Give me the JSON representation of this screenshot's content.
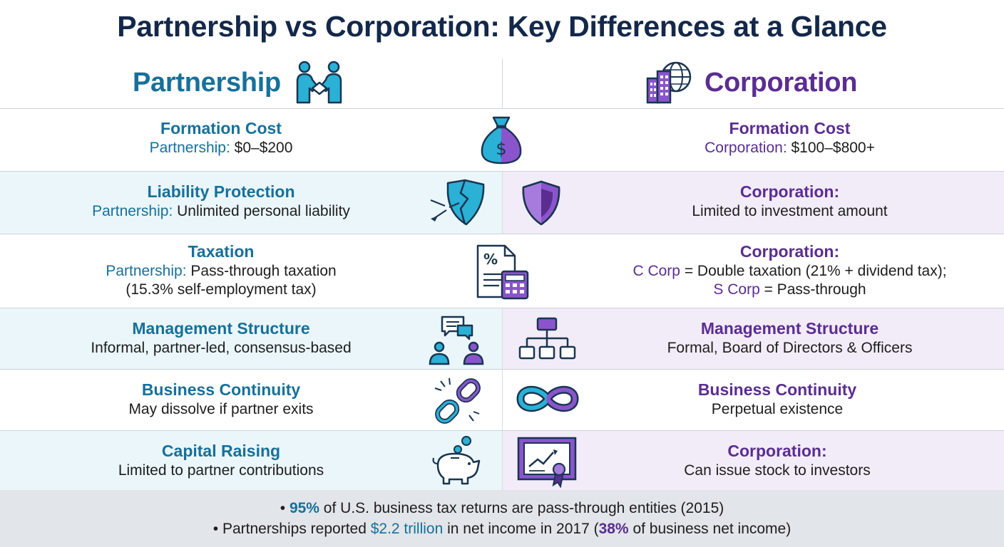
{
  "title": "Partnership vs Corporation: Key Differences at a Glance",
  "header": {
    "left": "Partnership",
    "right": "Corporation"
  },
  "rows": [
    {
      "left": {
        "heading": "Formation Cost",
        "label": "Partnership:",
        "text": "$0–$200"
      },
      "right": {
        "heading": "Formation Cost",
        "label": "Corporation:",
        "text": "$100–$800+"
      }
    },
    {
      "left": {
        "heading": "Liability Protection",
        "label": "Partnership:",
        "text": " Unlimited personal liability"
      },
      "right": {
        "heading": "Corporation:",
        "text": "Limited to investment amount"
      }
    },
    {
      "left": {
        "heading": "Taxation",
        "label": "Partnership:",
        "text": "Pass-through taxation",
        "text2": "(15.3% self-employment tax)"
      },
      "right": {
        "heading": "Corporation:",
        "label1": "C Corp",
        "text1": " = Double taxation (21% + dividend tax);",
        "label2": "S Corp",
        "text2": " = Pass-through"
      }
    },
    {
      "left": {
        "heading": "Management Structure",
        "text": "Informal, partner-led, consensus-based"
      },
      "right": {
        "heading": "Management Structure",
        "text": "Formal, Board of Directors & Officers"
      }
    },
    {
      "left": {
        "heading": "Business Continuity",
        "text": "May dissolve if partner exits"
      },
      "right": {
        "heading": "Business Continuity",
        "text": "Perpetual existence"
      }
    },
    {
      "left": {
        "heading": "Capital Raising",
        "text": "Limited to partner contributions"
      },
      "right": {
        "heading": "Corporation:",
        "text": "Can issue stock to investors"
      }
    }
  ],
  "footer": {
    "line1": {
      "bullet": "•",
      "highlight": "95%",
      "text": " of U.S. business tax returns are pass-through entities (2015)"
    },
    "line2": {
      "bullet": "•",
      "text_a": " Partnerships reported ",
      "amount": "$2.2 trillion",
      "text_b": " in net income in 2017 (",
      "pct": "38%",
      "text_c": " of business net income)"
    }
  },
  "colors": {
    "partnership": "#17709a",
    "corporation": "#5b2d91",
    "title": "#13284a",
    "teal_icon": "#2bb0d6",
    "purple_icon": "#8a55cc"
  },
  "icons": [
    "handshake-icon",
    "city-globe-icon",
    "money-bag-icon",
    "broken-shield-icon",
    "shield-icon",
    "tax-document-calculator-icon",
    "chat-people-icon",
    "org-chart-icon",
    "broken-chain-icon",
    "infinity-icon",
    "piggy-bank-icon",
    "stock-certificate-icon"
  ]
}
